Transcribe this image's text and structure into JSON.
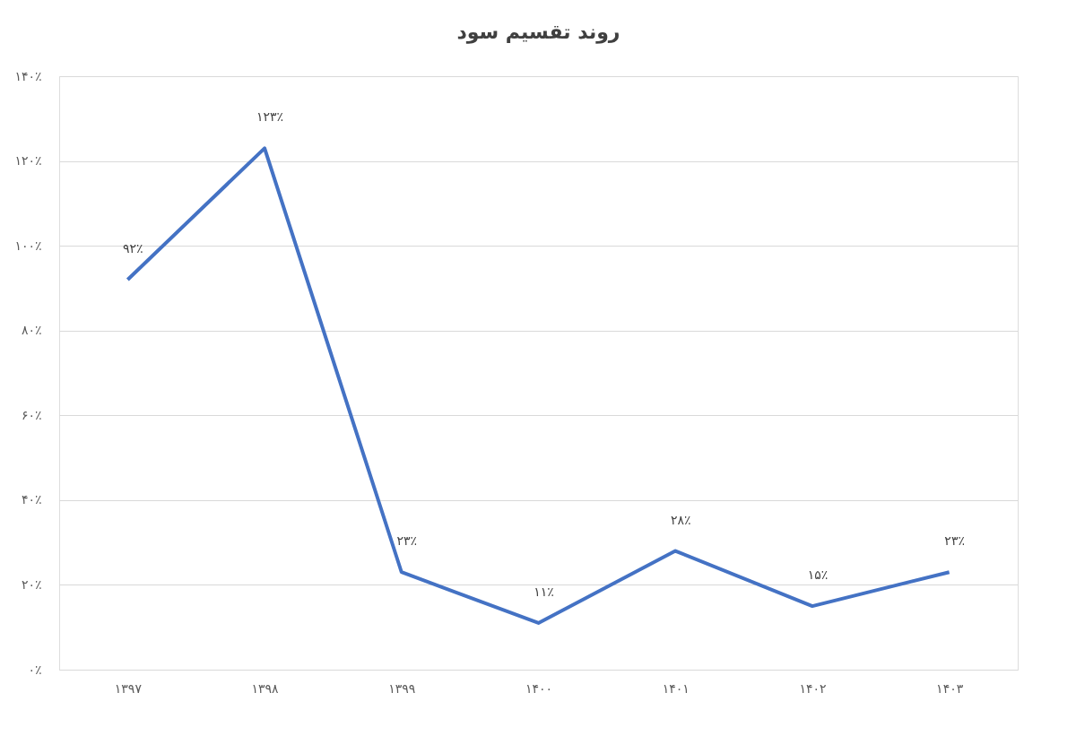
{
  "chart_data": {
    "type": "line",
    "title": "روند تقسیم سود",
    "categories": [
      "۱۳۹۷",
      "۱۳۹۸",
      "۱۳۹۹",
      "۱۴۰۰",
      "۱۴۰۱",
      "۱۴۰۲",
      "۱۴۰۳"
    ],
    "series": [
      {
        "color": "#4472c4",
        "values": [
          92,
          123,
          23,
          11,
          28,
          15,
          23
        ],
        "value_labels": [
          "۹۲٪",
          "۱۲۳٪",
          "۲۳٪",
          "۱۱٪",
          "۲۸٪",
          "۱۵٪",
          "۲۳٪"
        ]
      }
    ],
    "ylim": [
      0,
      140
    ],
    "yticks": [
      {
        "value": 0,
        "label": "۰٪"
      },
      {
        "value": 20,
        "label": "۲۰٪"
      },
      {
        "value": 40,
        "label": "۴۰٪"
      },
      {
        "value": 60,
        "label": "۶۰٪"
      },
      {
        "value": 80,
        "label": "۸۰٪"
      },
      {
        "value": 100,
        "label": "۱۰۰٪"
      },
      {
        "value": 120,
        "label": "۱۲۰٪"
      },
      {
        "value": 140,
        "label": "۱۴۰٪"
      }
    ],
    "grid": "y",
    "marker": "none",
    "line_style": "solid"
  }
}
